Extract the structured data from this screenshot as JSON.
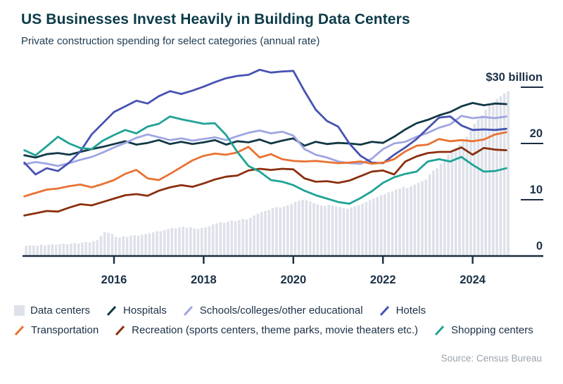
{
  "header": {
    "title": "US Businesses Invest Heavily in Building Data Centers",
    "subtitle": "Private construction spending for select categories (annual rate)"
  },
  "source": "Source: Census Bureau",
  "chart_data": {
    "type": "combo bar + line",
    "title": "US Businesses Invest Heavily in Building Data Centers",
    "subtitle": "Private construction spending for select categories (annual rate)",
    "unit": "billions of US dollars, annual rate",
    "grid": false,
    "legend_position": "bottom",
    "x_axis": {
      "range": [
        2013.9,
        2025.55
      ],
      "ticks": [
        2016,
        2018,
        2020,
        2022,
        2024
      ]
    },
    "y_axis": {
      "range": [
        0,
        34
      ],
      "ticks": [
        {
          "value": 30,
          "label": "$30 billion"
        },
        {
          "value": 20,
          "label": "20"
        },
        {
          "value": 10,
          "label": "10"
        },
        {
          "value": 0,
          "label": "0"
        }
      ]
    },
    "bar_series": {
      "id": "data-centers",
      "name": "Data centers",
      "color": "#dee1e9",
      "x_start": 2014.0,
      "x_step_years": 0.0833333,
      "values": [
        1.8,
        1.9,
        1.9,
        1.8,
        2.0,
        1.9,
        2.0,
        2.1,
        2.0,
        2.1,
        2.2,
        2.1,
        2.2,
        2.3,
        2.2,
        2.4,
        2.5,
        2.4,
        2.6,
        2.8,
        3.6,
        4.3,
        4.1,
        3.9,
        3.4,
        3.3,
        3.5,
        3.4,
        3.6,
        3.7,
        3.6,
        3.8,
        3.9,
        4.0,
        4.2,
        4.4,
        4.4,
        4.6,
        4.8,
        5.0,
        4.9,
        5.1,
        5.2,
        5.0,
        5.1,
        4.9,
        4.8,
        5.0,
        5.1,
        5.3,
        5.6,
        5.8,
        6.0,
        5.9,
        6.1,
        6.3,
        6.2,
        6.4,
        6.6,
        6.5,
        6.8,
        7.2,
        7.5,
        7.8,
        8.0,
        8.2,
        8.5,
        8.7,
        8.6,
        8.8,
        9.0,
        9.2,
        9.6,
        9.8,
        10.0,
        9.9,
        9.7,
        9.4,
        9.2,
        9.0,
        8.9,
        9.1,
        9.0,
        8.8,
        8.7,
        8.5,
        8.4,
        8.6,
        8.8,
        9.0,
        9.3,
        9.6,
        9.9,
        10.2,
        10.5,
        10.8,
        11.0,
        11.3,
        11.5,
        11.8,
        12.0,
        12.3,
        12.1,
        12.4,
        12.7,
        13.0,
        13.3,
        13.6,
        14.5,
        15.2,
        15.6,
        16.4,
        17.2,
        18.0,
        18.6,
        19.2,
        19.8,
        20.5,
        21.2,
        22.3,
        23.5,
        24.3,
        25.0,
        26.0,
        26.8,
        27.3,
        27.9,
        28.4,
        28.9,
        29.3
      ]
    },
    "x_quarterly": [
      2014,
      2014.25,
      2014.5,
      2014.75,
      2015,
      2015.25,
      2015.5,
      2015.75,
      2016,
      2016.25,
      2016.5,
      2016.75,
      2017,
      2017.25,
      2017.5,
      2017.75,
      2018,
      2018.25,
      2018.5,
      2018.75,
      2019,
      2019.25,
      2019.5,
      2019.75,
      2020,
      2020.25,
      2020.5,
      2020.75,
      2021,
      2021.25,
      2021.5,
      2021.75,
      2022,
      2022.25,
      2022.5,
      2022.75,
      2023,
      2023.25,
      2023.5,
      2023.75,
      2024,
      2024.25,
      2024.5,
      2024.75
    ],
    "line_series": [
      {
        "id": "hospitals",
        "name": "Hospitals",
        "color": "#113845",
        "values": [
          17.9,
          17.5,
          18.1,
          18.3,
          18.0,
          18.5,
          19.0,
          19.4,
          19.9,
          20.4,
          19.8,
          20.1,
          20.6,
          19.9,
          20.3,
          19.9,
          20.2,
          20.6,
          19.8,
          20.4,
          20.2,
          20.7,
          20.0,
          20.5,
          20.9,
          19.6,
          20.3,
          19.9,
          20.1,
          20.0,
          19.8,
          20.3,
          20.1,
          21.2,
          22.5,
          23.6,
          24.2,
          25.0,
          25.6,
          26.6,
          27.2,
          26.8,
          27.1,
          27.0
        ]
      },
      {
        "id": "schools",
        "name": "Schools/colleges/other educational",
        "color": "#9fa5e2",
        "values": [
          16.3,
          16.7,
          16.4,
          16.0,
          16.5,
          17.1,
          17.6,
          18.4,
          19.3,
          20.1,
          21.0,
          21.6,
          21.1,
          20.6,
          20.9,
          20.5,
          20.8,
          21.1,
          20.6,
          21.3,
          21.9,
          22.3,
          21.8,
          22.1,
          21.4,
          19.0,
          18.0,
          17.5,
          16.8,
          16.5,
          16.4,
          17.3,
          19.0,
          20.0,
          20.3,
          21.2,
          21.9,
          22.8,
          23.4,
          24.9,
          24.5,
          24.7,
          24.5,
          24.8
        ]
      },
      {
        "id": "hotels",
        "name": "Hotels",
        "color": "#4652b2",
        "values": [
          16.6,
          14.5,
          15.6,
          15.1,
          16.6,
          18.6,
          21.6,
          23.6,
          25.6,
          26.6,
          27.6,
          27.1,
          28.4,
          29.3,
          28.8,
          29.4,
          30.1,
          30.9,
          31.6,
          32.0,
          32.2,
          33.1,
          32.6,
          32.8,
          32.9,
          29.3,
          26.0,
          24.0,
          23.0,
          20.0,
          17.8,
          16.6,
          16.5,
          18.0,
          19.3,
          20.8,
          22.7,
          24.6,
          24.8,
          23.2,
          22.4,
          22.5,
          22.4,
          22.6
        ]
      },
      {
        "id": "transportation",
        "name": "Transportation",
        "color": "#e97232",
        "values": [
          10.6,
          11.2,
          11.8,
          12.0,
          12.4,
          12.7,
          12.2,
          12.8,
          13.5,
          14.6,
          15.3,
          13.8,
          13.5,
          14.6,
          15.8,
          17.0,
          17.8,
          18.2,
          18.0,
          18.4,
          19.4,
          17.5,
          18.1,
          17.2,
          16.9,
          16.8,
          16.9,
          16.7,
          16.5,
          16.6,
          16.8,
          16.4,
          16.6,
          17.2,
          18.6,
          19.6,
          19.8,
          20.8,
          20.4,
          20.6,
          20.4,
          20.7,
          21.6,
          22.0
        ]
      },
      {
        "id": "recreation",
        "name": "Recreation (sports centers, theme parks, movie theaters etc.)",
        "color": "#8a2f0e",
        "values": [
          7.2,
          7.6,
          8.0,
          7.9,
          8.6,
          9.2,
          9.0,
          9.6,
          10.2,
          10.8,
          11.0,
          10.7,
          11.6,
          12.2,
          12.6,
          12.3,
          12.9,
          13.6,
          14.1,
          14.3,
          15.2,
          15.5,
          15.3,
          15.5,
          15.4,
          13.8,
          13.2,
          13.3,
          13.0,
          13.4,
          14.2,
          15.0,
          15.2,
          14.5,
          16.8,
          17.7,
          18.3,
          18.5,
          18.5,
          19.3,
          18.0,
          19.2,
          18.9,
          18.8
        ]
      },
      {
        "id": "shopping-centers",
        "name": "Shopping centers",
        "color": "#1fa396",
        "values": [
          18.8,
          17.9,
          19.5,
          21.2,
          20.0,
          19.2,
          19.0,
          20.5,
          21.5,
          22.4,
          21.8,
          23.0,
          23.5,
          24.8,
          24.3,
          23.9,
          23.5,
          23.6,
          21.5,
          18.5,
          16.0,
          15.0,
          13.5,
          13.2,
          12.6,
          11.6,
          10.8,
          10.2,
          9.6,
          9.3,
          10.3,
          11.5,
          13.0,
          14.0,
          14.6,
          15.0,
          16.8,
          17.2,
          16.8,
          17.6,
          16.2,
          15.0,
          15.1,
          15.6
        ]
      }
    ],
    "legend_rows": [
      [
        "data-centers",
        "hospitals",
        "schools",
        "hotels"
      ],
      [
        "transportation",
        "recreation",
        "shopping-centers"
      ]
    ]
  }
}
